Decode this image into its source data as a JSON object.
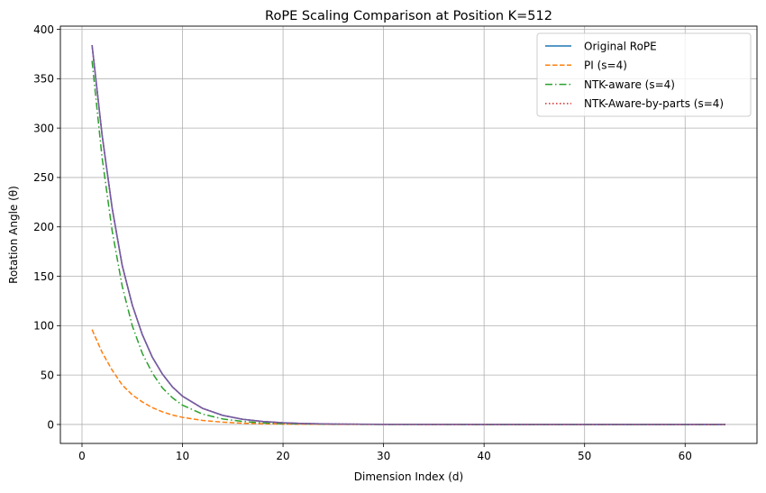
{
  "chart_data": {
    "type": "line",
    "title": "RoPE Scaling Comparison at Position K=512",
    "xlabel": "Dimension Index (d)",
    "ylabel": "Rotation Angle (θ)",
    "xlim": [
      -2.15,
      67.15
    ],
    "ylim": [
      -19.2,
      403.2
    ],
    "xticks": [
      0,
      10,
      20,
      30,
      40,
      50,
      60
    ],
    "yticks": [
      0,
      50,
      100,
      150,
      200,
      250,
      300,
      350,
      400
    ],
    "grid": true,
    "legend_position": "top-right",
    "colors": {
      "original": "#1f77b4",
      "pi": "#ff7f0e",
      "ntk": "#2ca02c",
      "ntk_parts": "#d62728"
    },
    "series": [
      {
        "name": "Original RoPE",
        "style": "solid",
        "color": "#1f77b4",
        "x": [
          1,
          2,
          3,
          4,
          5,
          6,
          7,
          8,
          9,
          10,
          12,
          14,
          16,
          18,
          20,
          22,
          25,
          30,
          40,
          50,
          64
        ],
        "y": [
          384,
          293,
          219,
          161,
          121,
          91,
          68,
          51,
          38,
          28.6,
          16.3,
          9.2,
          5.2,
          3.0,
          1.7,
          0.95,
          0.4,
          0.1,
          0.01,
          0.0,
          0.0
        ]
      },
      {
        "name": "PI (s=4)",
        "style": "dashed",
        "color": "#ff7f0e",
        "x": [
          1,
          2,
          3,
          4,
          5,
          6,
          7,
          8,
          9,
          10,
          12,
          14,
          16,
          18,
          20,
          25,
          30,
          40,
          64
        ],
        "y": [
          96,
          73,
          55,
          40,
          30,
          22.8,
          17,
          12.8,
          9.5,
          7.2,
          4.1,
          2.3,
          1.3,
          0.75,
          0.42,
          0.1,
          0.02,
          0.0,
          0.0
        ]
      },
      {
        "name": "NTK-aware (s=4)",
        "style": "dashdot",
        "color": "#2ca02c",
        "x": [
          1,
          2,
          3,
          4,
          5,
          6,
          7,
          8,
          9,
          10,
          12,
          14,
          16,
          18,
          20,
          25,
          30,
          40,
          64
        ],
        "y": [
          368,
          270,
          196,
          140,
          100,
          72,
          52,
          37,
          27,
          19.5,
          10.5,
          5.6,
          3.0,
          1.6,
          0.85,
          0.2,
          0.05,
          0.0,
          0.0
        ]
      },
      {
        "name": "NTK-Aware-by-parts (s=4)",
        "style": "dotted",
        "color": "#d62728",
        "x": [
          1,
          2,
          3,
          4,
          5,
          6,
          7,
          8,
          9,
          10,
          12,
          14,
          16,
          18,
          20,
          22,
          25,
          30,
          40,
          50,
          64
        ],
        "y": [
          384,
          293,
          219,
          161,
          121,
          91,
          68,
          51,
          38,
          28.6,
          16.3,
          9.2,
          5.2,
          3.0,
          1.7,
          0.95,
          0.4,
          0.1,
          0.01,
          0.0,
          0.0
        ]
      }
    ]
  }
}
